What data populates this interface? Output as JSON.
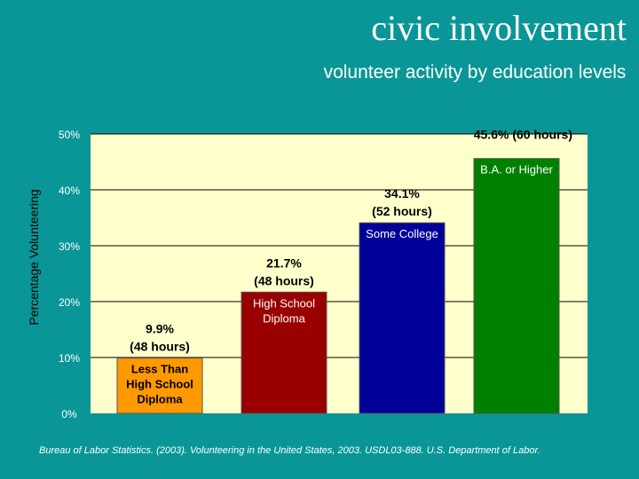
{
  "chart_data": {
    "type": "bar",
    "title": "civic involvement",
    "subtitle": "volunteer activity by education levels",
    "ylabel": "Percentage Volunteering",
    "xlabel": "",
    "ylim": [
      0,
      50
    ],
    "yticks": [
      "0%",
      "10%",
      "20%",
      "30%",
      "40%",
      "50%"
    ],
    "grid": true,
    "categories": [
      "Less Than High School Diploma",
      "High School Diploma",
      "Some College",
      "B.A. or Higher"
    ],
    "values": [
      9.9,
      21.7,
      34.1,
      45.6
    ],
    "value_labels": [
      [
        "9.9%",
        "(48 hours)"
      ],
      [
        "21.7%",
        "(48 hours)"
      ],
      [
        "34.1%",
        "(52 hours)"
      ],
      [
        "45.6% (60 hours)"
      ]
    ],
    "category_labels": [
      [
        "Less Than",
        "High School",
        "Diploma"
      ],
      [
        "High School",
        "Diploma"
      ],
      [
        "Some College"
      ],
      [
        "B.A. or Higher"
      ]
    ],
    "colors": [
      "#ff9900",
      "#990000",
      "#000099",
      "#008000"
    ],
    "plot_background": "#ffffcc"
  },
  "source": "Bureau of Labor Statistics. (2003). Volunteering in the United States, 2003. USDL03-888. U.S. Department of Labor."
}
